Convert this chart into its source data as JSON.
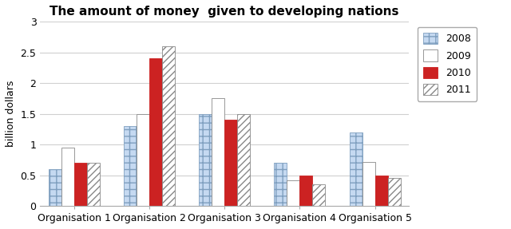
{
  "title": "The amount of money  given to developing nations",
  "ylabel": "billion dollars",
  "organizations": [
    "Organisation 1",
    "Organisation 2",
    "Organisation 3",
    "Organisation 4",
    "Organisation 5"
  ],
  "years": [
    "2008",
    "2009",
    "2010",
    "2011"
  ],
  "values": {
    "2008": [
      0.6,
      1.3,
      1.5,
      0.7,
      1.2
    ],
    "2009": [
      0.95,
      1.5,
      1.75,
      0.42,
      0.72
    ],
    "2010": [
      0.7,
      2.4,
      1.4,
      0.5,
      0.5
    ],
    "2011": [
      0.7,
      2.6,
      1.5,
      0.35,
      0.45
    ]
  },
  "bar_styles": {
    "2008": {
      "facecolor": "#c5d9f1",
      "edgecolor": "#7f9fbf",
      "hatch": "++",
      "linewidth": 0.6
    },
    "2009": {
      "facecolor": "#ffffff",
      "edgecolor": "#888888",
      "hatch": null,
      "linewidth": 0.6
    },
    "2010": {
      "facecolor": "#cc2222",
      "edgecolor": "#cc2222",
      "hatch": null,
      "linewidth": 0.6
    },
    "2011": {
      "facecolor": "#ffffff",
      "edgecolor": "#888888",
      "hatch": "////",
      "linewidth": 0.6
    }
  },
  "ylim": [
    0,
    3
  ],
  "yticks": [
    0,
    0.5,
    1.0,
    1.5,
    2.0,
    2.5,
    3.0
  ],
  "ytick_labels": [
    "0",
    "0.5",
    "1",
    "1.5",
    "2",
    "2.5",
    "3"
  ],
  "bar_width": 0.17,
  "group_width": 1.0,
  "figsize": [
    6.4,
    2.87
  ],
  "dpi": 100,
  "title_fontsize": 11,
  "axis_fontsize": 9,
  "legend_fontsize": 9,
  "grid_color": "#d0d0d0",
  "spine_color": "#aaaaaa"
}
